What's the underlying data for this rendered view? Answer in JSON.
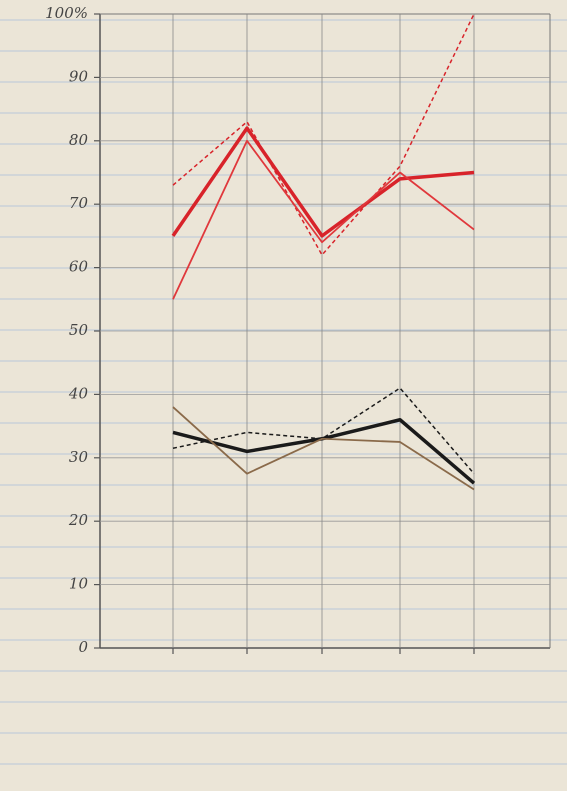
{
  "chart_data": {
    "type": "line",
    "categories": [
      null,
      null,
      null,
      null,
      null
    ],
    "series": [
      {
        "color": "#d8232a",
        "dash": true,
        "width": 1.5,
        "values": [
          73,
          83,
          62,
          76,
          100
        ]
      },
      {
        "color": "#d8232a",
        "dash": false,
        "width": 3.5,
        "values": [
          65,
          82,
          65,
          74,
          75
        ]
      },
      {
        "color": "#e0383c",
        "dash": false,
        "width": 1.8,
        "values": [
          55,
          80,
          64,
          75,
          66
        ]
      },
      {
        "color": "#1a1a1a",
        "dash": false,
        "width": 3.5,
        "values": [
          34,
          31,
          33,
          36,
          26
        ]
      },
      {
        "color": "#1a1a1a",
        "dash": true,
        "width": 1.5,
        "values": [
          31.5,
          34,
          33,
          41,
          27.5
        ]
      },
      {
        "color": "#8a6a4a",
        "dash": false,
        "width": 1.8,
        "values": [
          38,
          27.5,
          33,
          32.5,
          25
        ]
      }
    ],
    "ylim": [
      0,
      100
    ],
    "yticks": [
      0,
      10,
      20,
      30,
      40,
      50,
      60,
      70,
      80,
      90,
      {
        "value": 100,
        "label": "100%"
      }
    ],
    "grid": true
  }
}
